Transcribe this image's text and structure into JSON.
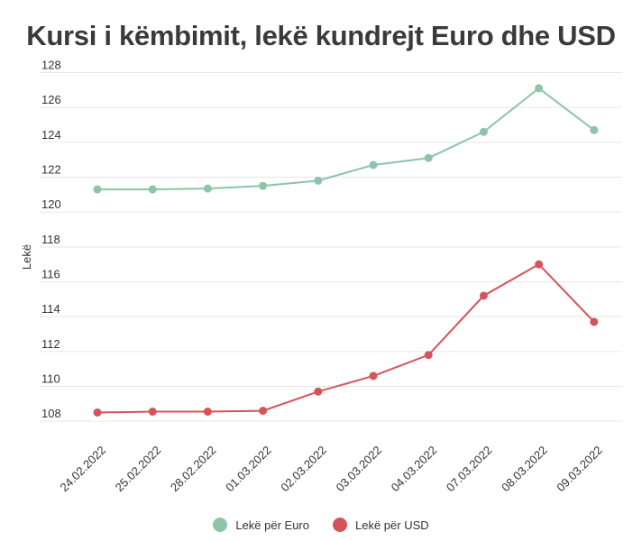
{
  "title": "Kursi i këmbimit, lekë kundrejt Euro dhe USD",
  "colors": {
    "euro": "#8cc5a7",
    "usd": "#d55459",
    "grid": "#e6e6e6"
  },
  "chart_data": {
    "type": "line",
    "title": "Kursi i këmbimit, lekë kundrejt Euro dhe USD",
    "xlabel": "",
    "ylabel": "Lekë",
    "ylim": [
      107,
      128
    ],
    "yticks": [
      108,
      110,
      112,
      114,
      116,
      118,
      120,
      122,
      124,
      126,
      128
    ],
    "grid": true,
    "legend_position": "bottom",
    "categories": [
      "24.02.2022",
      "25.02.2022",
      "28.02.2022",
      "01.03.2022",
      "02.03.2022",
      "03.03.2022",
      "04.03.2022",
      "07.03.2022",
      "08.03.2022",
      "09.03.2022"
    ],
    "series": [
      {
        "name": "Lekë për Euro",
        "color": "#8cc5a7",
        "values": [
          121.3,
          121.3,
          121.35,
          121.5,
          121.8,
          122.7,
          123.1,
          124.6,
          127.1,
          124.7
        ]
      },
      {
        "name": "Lekë për USD",
        "color": "#d55459",
        "values": [
          108.5,
          108.55,
          108.55,
          108.6,
          109.7,
          110.6,
          111.8,
          115.2,
          117.0,
          113.7
        ]
      }
    ]
  }
}
